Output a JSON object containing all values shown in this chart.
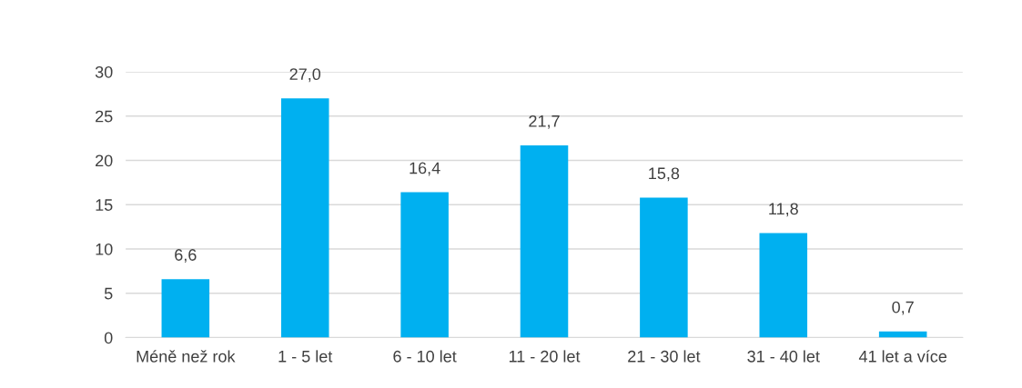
{
  "chart_data": {
    "type": "bar",
    "categories": [
      "Méně než rok",
      "1 - 5 let",
      "6 - 10 let",
      "11 - 20 let",
      "21 - 30 let",
      "31 - 40 let",
      "41 let a více"
    ],
    "values": [
      6.6,
      27.0,
      16.4,
      21.7,
      15.8,
      11.8,
      0.7
    ],
    "value_labels": [
      "6,6",
      "27,0",
      "16,4",
      "21,7",
      "15,8",
      "11,8",
      "0,7"
    ],
    "color": "#00b0f0",
    "ylim": [
      0,
      30
    ],
    "yticks": [
      0,
      5,
      10,
      15,
      20,
      25,
      30
    ],
    "grid": "y",
    "legend": false
  }
}
